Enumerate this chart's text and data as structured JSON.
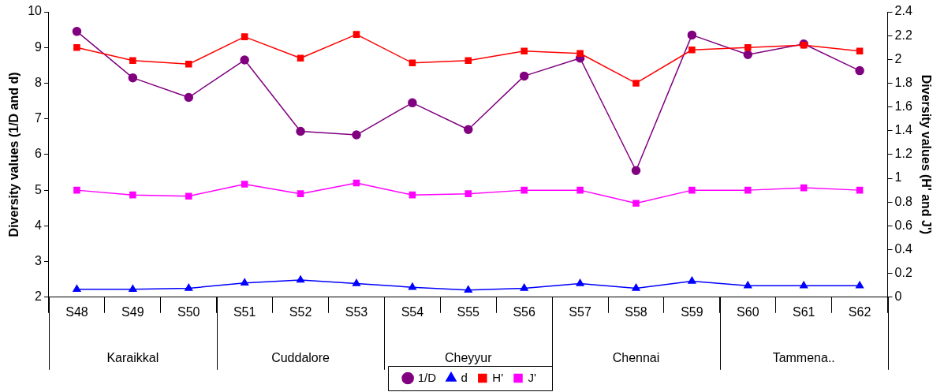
{
  "chart_data": {
    "type": "line",
    "ylabel": "Diversity values (1/D and d)",
    "y2label": "Diversity values (H' and J')",
    "categories": [
      "S48",
      "S49",
      "S50",
      "S51",
      "S52",
      "S53",
      "S54",
      "S55",
      "S56",
      "S57",
      "S58",
      "S59",
      "S60",
      "S61",
      "S62"
    ],
    "annotations": [
      "Karaikkal",
      "Cuddalore",
      "Cheyyur",
      "Chennai",
      "Tammena.."
    ],
    "series": [
      {
        "name": "1/D",
        "color": "#800080",
        "marker": "circle",
        "values": [
          9.45,
          8.15,
          7.6,
          8.65,
          6.65,
          6.55,
          7.45,
          6.7,
          8.2,
          8.7,
          5.55,
          9.35,
          8.8,
          9.1,
          8.35
        ]
      },
      {
        "name": "d",
        "color": "#0000ff",
        "marker": "triangle",
        "values": [
          2.22,
          2.22,
          2.25,
          2.4,
          2.48,
          2.38,
          2.28,
          2.2,
          2.25,
          2.38,
          2.25,
          2.45,
          2.32,
          2.32,
          2.32
        ]
      },
      {
        "name": "H'",
        "color": "#ff0000",
        "marker": "square",
        "axis": "y2",
        "values": [
          2.1,
          1.99,
          1.96,
          2.19,
          2.01,
          2.21,
          1.97,
          1.99,
          2.07,
          2.05,
          1.8,
          2.08,
          2.1,
          2.12,
          2.07
        ]
      },
      {
        "name": "J'",
        "color": "#ff00ff",
        "marker": "square",
        "axis": "y2",
        "values": [
          0.9,
          0.86,
          0.85,
          0.95,
          0.87,
          0.96,
          0.86,
          0.87,
          0.9,
          0.9,
          0.79,
          0.9,
          0.9,
          0.92,
          0.9
        ]
      }
    ],
    "ylim": [
      2,
      10
    ],
    "yticks": [
      2,
      3,
      4,
      5,
      6,
      7,
      8,
      9,
      10
    ],
    "y2lim": [
      0,
      2.4
    ],
    "y2ticks": [
      0,
      0.2,
      0.4,
      0.6,
      0.8,
      1,
      1.2,
      1.4,
      1.6,
      1.8,
      2,
      2.2,
      2.4
    ],
    "grid": false,
    "legend": "bottom"
  }
}
